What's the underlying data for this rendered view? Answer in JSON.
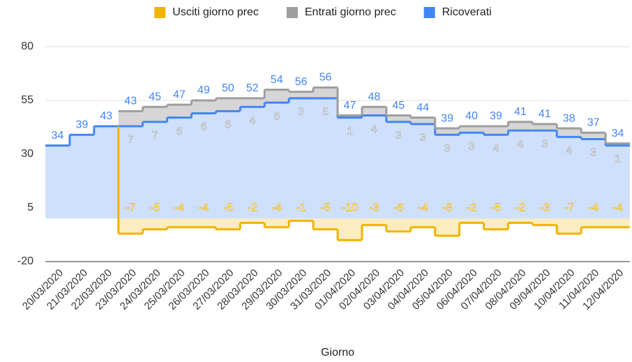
{
  "chart_data": {
    "type": "stepped-area",
    "x_label": "Giorno",
    "categories": [
      "20/03/2020",
      "21/03/2020",
      "22/03/2020",
      "23/03/2020",
      "24/03/2020",
      "25/03/2020",
      "26/03/2020",
      "27/03/2020",
      "28/03/2020",
      "29/03/2020",
      "30/03/2020",
      "31/03/2020",
      "01/04/2020",
      "02/04/2020",
      "03/04/2020",
      "04/04/2020",
      "05/04/2020",
      "06/04/2020",
      "07/04/2020",
      "08/04/2020",
      "09/04/2020",
      "10/04/2020",
      "11/04/2020",
      "12/04/2020"
    ],
    "series": [
      {
        "name": "Usciti giorno prec",
        "color": "#f1b400",
        "fill": "#fbe9b4",
        "values": [
          null,
          null,
          null,
          -7,
          -5,
          -4,
          -4,
          -5,
          -2,
          -4,
          -1,
          -5,
          -10,
          -3,
          -6,
          -4,
          -8,
          -2,
          -5,
          -2,
          -3,
          -7,
          -4,
          -4
        ]
      },
      {
        "name": "Entrati giorno prec",
        "color": "#9e9e9e",
        "fill": "#cfcfcf",
        "values": [
          null,
          null,
          null,
          7,
          7,
          6,
          6,
          6,
          4,
          6,
          3,
          5,
          1,
          4,
          3,
          3,
          3,
          3,
          4,
          4,
          3,
          4,
          3,
          1
        ]
      },
      {
        "name": "Ricoverati",
        "color": "#4285f4",
        "fill": "#c7dafb",
        "values": [
          34,
          39,
          43,
          43,
          45,
          47,
          49,
          50,
          52,
          54,
          56,
          56,
          47,
          48,
          45,
          44,
          39,
          40,
          39,
          41,
          41,
          38,
          37,
          34
        ]
      }
    ],
    "ylim": [
      -20,
      80
    ],
    "yticks": [
      -20,
      5,
      30,
      55,
      80
    ],
    "grid": true,
    "legend": "top"
  }
}
